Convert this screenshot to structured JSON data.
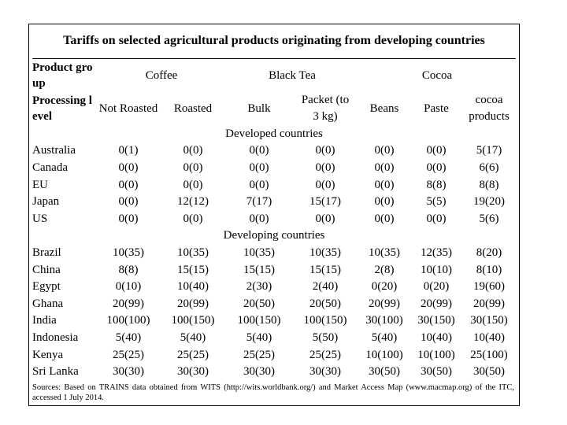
{
  "title": "Tariffs on selected agricultural products originating from developing countries",
  "header": {
    "product_group_label": "Product group",
    "processing_level_label": "Processing level",
    "groups": [
      "Coffee",
      "Black Tea",
      "Cocoa"
    ],
    "levels": [
      "Not Roasted",
      "Roasted",
      "Bulk",
      "Packet (to 3 kg)",
      "Beans",
      "Paste",
      "cocoa products"
    ]
  },
  "sections": [
    {
      "name": "Developed countries",
      "rows": [
        {
          "country": "Australia",
          "values": [
            "0(1)",
            "0(0)",
            "0(0)",
            "0(0)",
            "0(0)",
            "0(0)",
            "5(17)"
          ]
        },
        {
          "country": "Canada",
          "values": [
            "0(0)",
            "0(0)",
            "0(0)",
            "0(0)",
            "0(0)",
            "0(0)",
            "6(6)"
          ]
        },
        {
          "country": "EU",
          "values": [
            "0(0)",
            "0(0)",
            "0(0)",
            "0(0)",
            "0(0)",
            "8(8)",
            "8(8)"
          ]
        },
        {
          "country": "Japan",
          "values": [
            "0(0)",
            "12(12)",
            "7(17)",
            "15(17)",
            "0(0)",
            "5(5)",
            "19(20)"
          ]
        },
        {
          "country": "US",
          "values": [
            "0(0)",
            "0(0)",
            "0(0)",
            "0(0)",
            "0(0)",
            "0(0)",
            "5(6)"
          ]
        }
      ]
    },
    {
      "name": "Developing countries",
      "rows": [
        {
          "country": "Brazil",
          "values": [
            "10(35)",
            "10(35)",
            "10(35)",
            "10(35)",
            "10(35)",
            "12(35)",
            "8(20)"
          ]
        },
        {
          "country": "China",
          "values": [
            "8(8)",
            "15(15)",
            "15(15)",
            "15(15)",
            "2(8)",
            "10(10)",
            "8(10)"
          ]
        },
        {
          "country": "Egypt",
          "values": [
            "0(10)",
            "10(40)",
            "2(30)",
            "2(40)",
            "0(20)",
            "0(20)",
            "19(60)"
          ]
        },
        {
          "country": "Ghana",
          "values": [
            "20(99)",
            "20(99)",
            "20(50)",
            "20(50)",
            "20(99)",
            "20(99)",
            "20(99)"
          ]
        },
        {
          "country": "India",
          "values": [
            "100(100)",
            "100(150)",
            "100(150)",
            "100(150)",
            "30(100)",
            "30(150)",
            "30(150)"
          ]
        },
        {
          "country": "Indonesia",
          "values": [
            "5(40)",
            "5(40)",
            "5(40)",
            "5(50)",
            "5(40)",
            "10(40)",
            "10(40)"
          ]
        },
        {
          "country": "Kenya",
          "values": [
            "25(25)",
            "25(25)",
            "25(25)",
            "25(25)",
            "10(100)",
            "10(100)",
            "25(100)"
          ]
        },
        {
          "country": "Sri Lanka",
          "values": [
            "30(30)",
            "30(30)",
            "30(30)",
            "30(30)",
            "30(50)",
            "30(50)",
            "30(50)"
          ]
        }
      ]
    }
  ],
  "source_note": "Sources: Based on TRAINS data obtained from WITS (http://wits.worldbank.org/) and Market Access Map (www.macmap.org) of the ITC, accessed 1 July 2014."
}
